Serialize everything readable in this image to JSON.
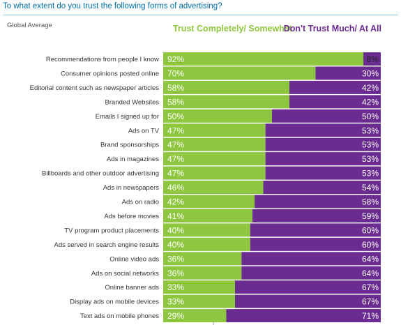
{
  "title": "To what extent do you trust the following forms of advertising?",
  "subtitle": "Global Average",
  "colors": {
    "trust": "#8ec63f",
    "distrust": "#6a2c91",
    "title": "#0070b0"
  },
  "chart_data": {
    "type": "bar",
    "orientation": "horizontal",
    "stacked": true,
    "unit": "%",
    "xlim": [
      0,
      100
    ],
    "categories": [
      "Recommendations from people I know",
      "Consumer opinions posted online",
      "Editorial content such as newspaper articles",
      "Branded Websites",
      "Emails I signed up for",
      "Ads on TV",
      "Brand sponsorships",
      "Ads in magazines",
      "Billboards and other outdoor advertising",
      "Ads in newspapers",
      "Ads on radio",
      "Ads before movies",
      "TV program product placements",
      "Ads served in search engine results",
      "Online video ads",
      "Ads on social networks",
      "Online banner ads",
      "Display ads on mobile devices",
      "Text ads on mobile phones"
    ],
    "series": [
      {
        "name": "Trust Completely/ Somewhat",
        "values": [
          92,
          70,
          58,
          58,
          50,
          47,
          47,
          47,
          47,
          46,
          42,
          41,
          40,
          40,
          36,
          36,
          33,
          33,
          29
        ]
      },
      {
        "name": "Don't Trust Much/ At All",
        "values": [
          8,
          30,
          42,
          42,
          50,
          53,
          53,
          53,
          53,
          54,
          58,
          59,
          60,
          60,
          64,
          64,
          67,
          67,
          71
        ]
      }
    ],
    "legend": "top"
  }
}
